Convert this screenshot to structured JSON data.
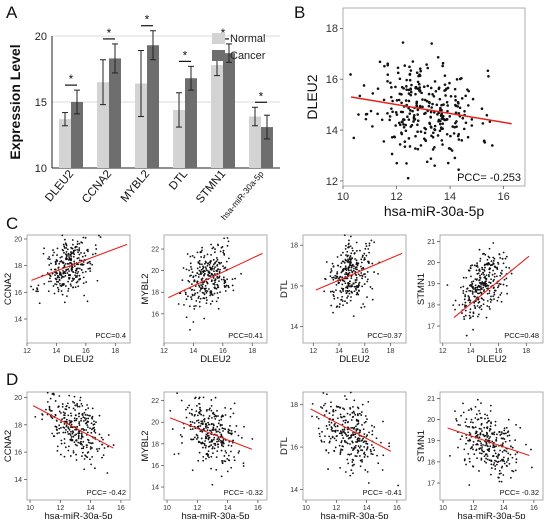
{
  "panel_letters": {
    "a": "A",
    "b": "B",
    "c": "C",
    "d": "D"
  },
  "colors": {
    "normal": "#d3d3d3",
    "cancer": "#6e6e6e",
    "regression": "#e8201a",
    "grid": "#cfcfcf",
    "point": "#111111"
  },
  "chart_data": [
    {
      "id": "A",
      "type": "bar",
      "ylabel": "Expression Level",
      "ylim": [
        10,
        20
      ],
      "yticks": [
        10,
        15,
        20
      ],
      "categories": [
        "DLEU2",
        "CCNA2",
        "MYBL2",
        "DTL",
        "STMN1",
        "hsa-miR-30a-5p"
      ],
      "series": [
        {
          "name": "Normal",
          "color": "#d3d3d3",
          "values": [
            13.7,
            16.5,
            16.4,
            14.4,
            17.8,
            13.9
          ],
          "errors": [
            0.5,
            1.7,
            2.5,
            1.3,
            0.8,
            0.7
          ]
        },
        {
          "name": "Cancer",
          "color": "#6e6e6e",
          "values": [
            15.0,
            18.3,
            19.3,
            16.8,
            18.7,
            13.1
          ],
          "errors": [
            0.9,
            1.1,
            1.1,
            0.9,
            0.7,
            0.9
          ]
        }
      ],
      "significance": [
        "*",
        "*",
        "*",
        "*",
        "*",
        "*"
      ],
      "legend_position": "top-right"
    },
    {
      "id": "B",
      "type": "scatter",
      "xlabel": "hsa-miR-30a-5p",
      "ylabel": "DLEU2",
      "xlim": [
        10,
        16.8
      ],
      "ylim": [
        11.8,
        18.8
      ],
      "xticks": [
        10,
        12,
        14,
        16
      ],
      "yticks": [
        12,
        14,
        16,
        18
      ],
      "regression": {
        "x": [
          10.3,
          16.3
        ],
        "y": [
          15.3,
          14.25
        ]
      },
      "pcc": "PCC= -0.253",
      "n": 300,
      "seed": 11,
      "cloud": {
        "mx": 13.1,
        "sx": 1.0,
        "slope": -0.175,
        "my": 14.85,
        "sy": 0.95
      }
    },
    {
      "id": "C1",
      "type": "scatter",
      "xlabel": "DLEU2",
      "ylabel": "CCNA2",
      "xlim": [
        12,
        19
      ],
      "ylim": [
        12.2,
        20.3
      ],
      "xticks": [
        12,
        14,
        16,
        18
      ],
      "yticks": [
        14,
        16,
        18,
        20
      ],
      "regression": {
        "x": [
          12.3,
          18.8
        ],
        "y": [
          16.9,
          19.6
        ]
      },
      "pcc": "PCC=0.4",
      "n": 300,
      "seed": 21,
      "cloud": {
        "mx": 14.9,
        "sx": 0.85,
        "slope": 0.42,
        "my": 17.9,
        "sy": 1.0
      }
    },
    {
      "id": "C2",
      "type": "scatter",
      "xlabel": "DLEU2",
      "ylabel": "MYBL2",
      "xlim": [
        12,
        19
      ],
      "ylim": [
        13.3,
        23.3
      ],
      "xticks": [
        12,
        14,
        16,
        18
      ],
      "yticks": [
        16,
        18,
        20,
        22
      ],
      "regression": {
        "x": [
          12.3,
          18.7
        ],
        "y": [
          17.5,
          21.6
        ]
      },
      "pcc": "PCC=0.41",
      "n": 300,
      "seed": 31,
      "cloud": {
        "mx": 14.9,
        "sx": 0.85,
        "slope": 0.64,
        "my": 19.3,
        "sy": 1.4
      }
    },
    {
      "id": "C3",
      "type": "scatter",
      "xlabel": "DLEU2",
      "ylabel": "DTL",
      "xlim": [
        11.2,
        19.2
      ],
      "ylim": [
        13.2,
        18.5
      ],
      "xticks": [
        12,
        14,
        16,
        18
      ],
      "yticks": [
        14,
        16,
        18
      ],
      "regression": {
        "x": [
          12.2,
          18.9
        ],
        "y": [
          15.8,
          17.6
        ]
      },
      "pcc": "PCC=0.37",
      "n": 300,
      "seed": 41,
      "cloud": {
        "mx": 14.9,
        "sx": 0.85,
        "slope": 0.27,
        "my": 16.6,
        "sy": 0.75
      }
    },
    {
      "id": "C4",
      "type": "scatter",
      "xlabel": "DLEU2",
      "ylabel": "STMN1",
      "xlim": [
        11.8,
        19.2
      ],
      "ylim": [
        16.2,
        21.3
      ],
      "xticks": [
        12,
        14,
        16,
        18
      ],
      "yticks": [
        17,
        18,
        19,
        20,
        21
      ],
      "regression": {
        "x": [
          12.8,
          18.2
        ],
        "y": [
          17.4,
          20.3
        ]
      },
      "pcc": "PCC=0.48",
      "n": 300,
      "seed": 51,
      "cloud": {
        "mx": 14.9,
        "sx": 0.85,
        "slope": 0.52,
        "my": 18.9,
        "sy": 0.7
      }
    },
    {
      "id": "D1",
      "type": "scatter",
      "xlabel": "hsa-miR-30a-5p",
      "ylabel": "CCNA2",
      "xlim": [
        9.8,
        16.6
      ],
      "ylim": [
        12.5,
        20.4
      ],
      "xticks": [
        10,
        12,
        14,
        16
      ],
      "yticks": [
        14,
        16,
        18,
        20
      ],
      "regression": {
        "x": [
          10.2,
          15.5
        ],
        "y": [
          19.4,
          16.3
        ]
      },
      "pcc": "PCC= -0.42",
      "n": 300,
      "seed": 61,
      "cloud": {
        "mx": 12.9,
        "sx": 1.0,
        "slope": -0.58,
        "my": 17.9,
        "sy": 1.1
      }
    },
    {
      "id": "D2",
      "type": "scatter",
      "xlabel": "hsa-miR-30a-5p",
      "ylabel": "MYBL2",
      "xlim": [
        9.8,
        16.6
      ],
      "ylim": [
        12.8,
        22.8
      ],
      "xticks": [
        10,
        12,
        14,
        16
      ],
      "yticks": [
        14,
        16,
        18,
        20,
        22
      ],
      "regression": {
        "x": [
          10.2,
          15.6
        ],
        "y": [
          20.4,
          17.5
        ]
      },
      "pcc": "PCC= -0.32",
      "n": 300,
      "seed": 71,
      "cloud": {
        "mx": 12.9,
        "sx": 1.0,
        "slope": -0.55,
        "my": 19.0,
        "sy": 1.5
      }
    },
    {
      "id": "D3",
      "type": "scatter",
      "xlabel": "hsa-miR-30a-5p",
      "ylabel": "DTL",
      "xlim": [
        9.8,
        16.6
      ],
      "ylim": [
        13.5,
        18.6
      ],
      "xticks": [
        10,
        12,
        14,
        16
      ],
      "yticks": [
        14,
        16,
        18
      ],
      "regression": {
        "x": [
          10.3,
          15.6
        ],
        "y": [
          17.8,
          15.8
        ]
      },
      "pcc": "PCC= -0.41",
      "n": 300,
      "seed": 81,
      "cloud": {
        "mx": 12.9,
        "sx": 1.0,
        "slope": -0.38,
        "my": 16.7,
        "sy": 0.8
      }
    },
    {
      "id": "D4",
      "type": "scatter",
      "xlabel": "hsa-miR-30a-5p",
      "ylabel": "STMN1",
      "xlim": [
        9.8,
        16.6
      ],
      "ylim": [
        16.2,
        21.3
      ],
      "xticks": [
        10,
        12,
        14,
        16
      ],
      "yticks": [
        17,
        18,
        19,
        20,
        21
      ],
      "regression": {
        "x": [
          10.3,
          15.7
        ],
        "y": [
          19.6,
          18.3
        ]
      },
      "pcc": "PCC= -0.32",
      "n": 300,
      "seed": 91,
      "cloud": {
        "mx": 12.9,
        "sx": 1.0,
        "slope": -0.24,
        "my": 18.9,
        "sy": 0.75
      }
    }
  ]
}
